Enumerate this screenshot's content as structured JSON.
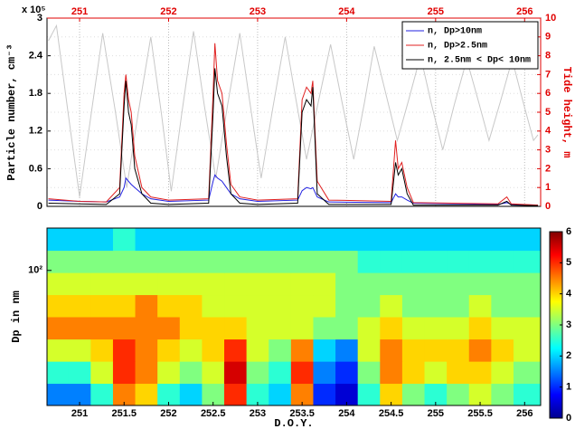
{
  "chart_data": [
    {
      "type": "line",
      "ylabel": "Particle number, cm⁻³",
      "y_multiplier": "x 10⁵",
      "y2label": "Tide height, m",
      "y2color": "#e00000",
      "xlim": [
        250.634,
        256.18
      ],
      "xticks": [
        251,
        252,
        253,
        254,
        255,
        256
      ],
      "ylim": [
        0,
        3
      ],
      "yticks": [
        0,
        0.6,
        1.2,
        1.8,
        2.4,
        3
      ],
      "y2lim": [
        0,
        10
      ],
      "y2ticks": [
        0,
        1,
        2,
        3,
        4,
        5,
        6,
        7,
        8,
        9,
        10
      ],
      "grid": true,
      "legend": "upper right",
      "x": [
        250.65,
        251.0,
        251.3,
        251.45,
        251.5,
        251.52,
        251.55,
        251.58,
        251.62,
        251.7,
        251.8,
        252.0,
        252.45,
        252.5,
        252.52,
        252.55,
        252.6,
        252.65,
        252.7,
        252.8,
        253.0,
        253.45,
        253.5,
        253.55,
        253.6,
        253.62,
        253.67,
        253.8,
        254.5,
        254.55,
        254.58,
        254.62,
        254.68,
        254.75,
        255.7,
        255.8,
        255.85,
        256.15
      ],
      "series": [
        {
          "name": "n, Dp>10nm",
          "color": "#2020e0",
          "values": [
            0.1,
            0.08,
            0.07,
            0.15,
            0.3,
            0.45,
            0.4,
            0.35,
            0.3,
            0.2,
            0.12,
            0.08,
            0.1,
            0.4,
            0.5,
            0.45,
            0.4,
            0.3,
            0.2,
            0.12,
            0.08,
            0.1,
            0.25,
            0.3,
            0.28,
            0.3,
            0.15,
            0.07,
            0.06,
            0.2,
            0.15,
            0.15,
            0.1,
            0.05,
            0.03,
            0.06,
            0.03,
            0.02
          ]
        },
        {
          "name": "n, Dp>2.5nm",
          "color": "#e02020",
          "values": [
            0.12,
            0.08,
            0.07,
            0.3,
            1.8,
            2.1,
            1.7,
            1.5,
            0.8,
            0.3,
            0.15,
            0.1,
            0.12,
            1.8,
            2.6,
            2.0,
            1.8,
            1.0,
            0.35,
            0.15,
            0.1,
            0.12,
            1.7,
            1.9,
            1.8,
            2.0,
            0.4,
            0.1,
            0.08,
            1.05,
            0.6,
            0.7,
            0.3,
            0.06,
            0.04,
            0.15,
            0.04,
            0.02
          ]
        },
        {
          "name": "n, 2.5nm < Dp< 10nm",
          "color": "#000000",
          "values": [
            0.05,
            0.04,
            0.03,
            0.2,
            1.6,
            2.0,
            1.5,
            1.3,
            0.6,
            0.2,
            0.05,
            0.03,
            0.05,
            1.5,
            2.2,
            1.8,
            1.6,
            0.8,
            0.2,
            0.05,
            0.03,
            0.05,
            1.5,
            1.7,
            1.6,
            1.9,
            0.2,
            0.03,
            0.03,
            0.7,
            0.5,
            0.6,
            0.2,
            0.02,
            0.02,
            0.08,
            0.02,
            0.01
          ]
        },
        {
          "color": "#c8c8c8",
          "axis": "y2",
          "x": [
            250.65,
            250.74,
            250.87,
            251.0,
            251.13,
            251.26,
            251.4,
            251.53,
            251.66,
            251.8,
            251.92,
            252.03,
            252.15,
            252.28,
            252.4,
            252.53,
            252.66,
            252.8,
            252.92,
            253.04,
            253.17,
            253.31,
            253.43,
            253.55,
            253.68,
            253.82,
            253.95,
            254.08,
            254.2,
            254.31,
            254.44,
            254.57,
            254.7,
            254.83,
            254.95,
            255.08,
            255.21,
            255.35,
            255.48,
            255.6,
            255.73,
            255.86,
            255.98,
            256.1,
            256.15
          ],
          "values": [
            8.8,
            9.6,
            5,
            0.5,
            4.9,
            9.2,
            5.1,
            1,
            5,
            9,
            4.9,
            0.8,
            5,
            9.3,
            5.4,
            1.5,
            5.3,
            9.2,
            5.3,
            1.5,
            5.2,
            9,
            5.7,
            2.5,
            5.5,
            8.6,
            5.5,
            2.5,
            5.5,
            8.5,
            6,
            3.5,
            5.7,
            8,
            5.5,
            3,
            5.4,
            7.8,
            5.6,
            3.5,
            5.6,
            7.8,
            5.6,
            3.5,
            3.8
          ]
        }
      ]
    },
    {
      "type": "heatmap",
      "xlabel": "D.O.Y.",
      "ylabel": "Dp in nm",
      "colormap": "jet",
      "log_y": true,
      "xlim": [
        250.634,
        256.18
      ],
      "xticks": [
        251,
        251.5,
        252,
        252.5,
        253,
        253.5,
        254,
        254.5,
        255,
        255.5,
        256
      ],
      "ylim": [
        3,
        300
      ],
      "yticks": [
        {
          "value": 100,
          "label": "10²"
        }
      ],
      "clim": [
        0,
        6
      ],
      "cticks": [
        0,
        1,
        2,
        3,
        4,
        5,
        6
      ],
      "x": [
        250.75,
        251.0,
        251.25,
        251.5,
        251.75,
        252.0,
        252.25,
        252.5,
        252.75,
        253.0,
        253.25,
        253.5,
        253.75,
        254.0,
        254.25,
        254.5,
        254.75,
        255.0,
        255.25,
        255.5,
        255.75,
        256.0
      ],
      "y": [
        4,
        7.1,
        12.6,
        22.5,
        40,
        71,
        126,
        225
      ],
      "z": [
        [
          1.5,
          1.5,
          2.5,
          4.5,
          4,
          2.5,
          2,
          3,
          5,
          2.5,
          2,
          4.5,
          1,
          0.5,
          2.5,
          4,
          3,
          2.5,
          3,
          3.5,
          3,
          2.5
        ],
        [
          2.5,
          2.5,
          3.5,
          5,
          4.5,
          3.5,
          3,
          3.5,
          5.5,
          3,
          2.5,
          5,
          1.5,
          1,
          3,
          4.5,
          4,
          3.5,
          4,
          4,
          3.5,
          3
        ],
        [
          3.5,
          3.5,
          4,
          5,
          4.5,
          4,
          3.5,
          4,
          5,
          3.5,
          3,
          4.5,
          2,
          1.5,
          3.5,
          4.5,
          4,
          4,
          4,
          4.5,
          4,
          3.5
        ],
        [
          4.5,
          4.5,
          4.5,
          4.5,
          4.5,
          4.5,
          4,
          4,
          4,
          3.5,
          3.5,
          3.5,
          3,
          3,
          3.5,
          4,
          3.5,
          3.5,
          3.5,
          4,
          3.5,
          3.5
        ],
        [
          4,
          4,
          4,
          4,
          4.5,
          4,
          4,
          3.5,
          3.5,
          3.5,
          3.5,
          3.5,
          3.5,
          3,
          3,
          3.5,
          3,
          3,
          3,
          3.5,
          3,
          3
        ],
        [
          3.5,
          3.5,
          3.5,
          3.5,
          3.5,
          3.5,
          3.5,
          3.5,
          3.5,
          3.5,
          3.5,
          3.5,
          3.5,
          3,
          3,
          3,
          3,
          3,
          3,
          3,
          3,
          3
        ],
        [
          3,
          3,
          3,
          3,
          3,
          3,
          3,
          3,
          3,
          3,
          3,
          3,
          3,
          3,
          2.5,
          2.5,
          2.5,
          2.5,
          2.5,
          2.5,
          2.5,
          2.5
        ],
        [
          2,
          2,
          2,
          2.5,
          2,
          2,
          2,
          2,
          2,
          2,
          2,
          2,
          2,
          2,
          2,
          2,
          2,
          2,
          2,
          2,
          2,
          2
        ]
      ]
    }
  ]
}
